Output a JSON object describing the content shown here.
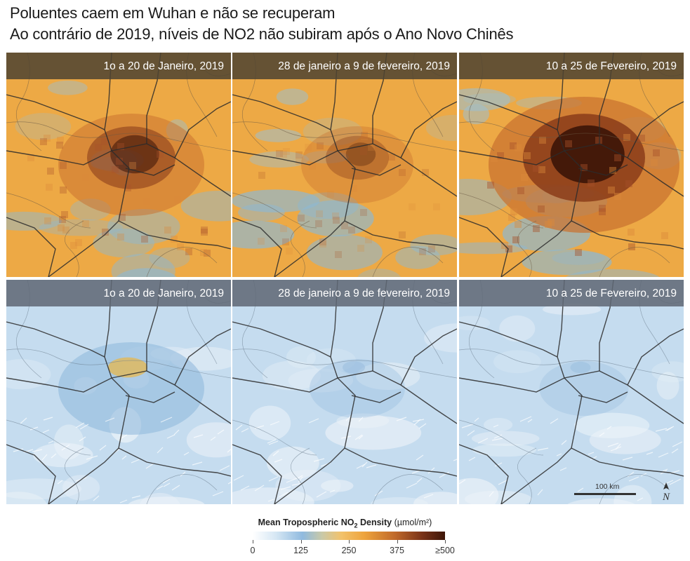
{
  "title": {
    "line1": "Poluentes caem em Wuhan e não se recuperam",
    "line2": "Ao contrário de 2019, níveis de NO2 não subiram após o Ano Novo Chinês"
  },
  "panels": [
    {
      "label": "1o a 20 de Janeiro, 2019",
      "row": 1,
      "col": 1,
      "palette": "orange",
      "intensity": 0.55
    },
    {
      "label": "28 de janeiro a 9 de fevereiro, 2019",
      "row": 1,
      "col": 2,
      "palette": "orange",
      "intensity": 0.25
    },
    {
      "label": "10 a 25 de Fevereiro, 2019",
      "row": 1,
      "col": 3,
      "palette": "orange",
      "intensity": 0.95
    },
    {
      "label": "1o a 20 de Janeiro, 2019",
      "row": 2,
      "col": 1,
      "palette": "blue",
      "intensity": 0.6
    },
    {
      "label": "28 de janeiro a 9 de fevereiro, 2019",
      "row": 2,
      "col": 2,
      "palette": "blue",
      "intensity": 0.2
    },
    {
      "label": "10 a 25 de Fevereiro, 2019",
      "row": 2,
      "col": 3,
      "palette": "blue",
      "intensity": 0.15
    }
  ],
  "legend": {
    "title": "Mean Tropospheric NO",
    "title_sub": "2",
    "title_rest": " Density",
    "unit": "(µmol/m²)",
    "ticks": [
      {
        "value": 0,
        "label": "0"
      },
      {
        "value": 125,
        "label": "125"
      },
      {
        "value": 250,
        "label": "250"
      },
      {
        "value": 375,
        "label": "375"
      },
      {
        "value": 500,
        "label": "≥500"
      }
    ],
    "max": 500
  },
  "scale_bar": {
    "label": "100 km"
  },
  "north_arrow": {
    "label": "N"
  },
  "colors": {
    "orange_base": "#eda945",
    "blue_base": "#c5dcef",
    "road": "#2b2b2b"
  }
}
